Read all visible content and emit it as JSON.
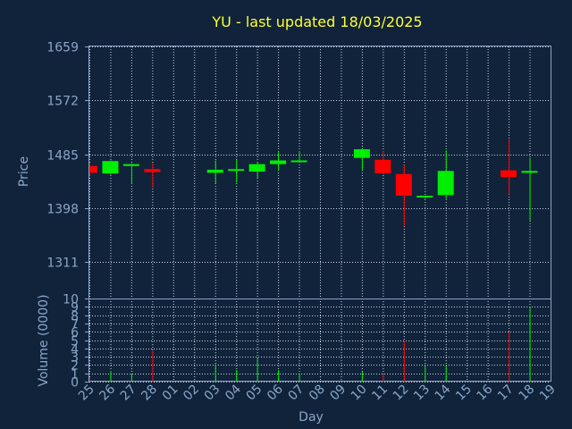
{
  "chart_data": {
    "type": "candlestick",
    "title": "YU - last updated 18/03/2025",
    "xlabel": "Day",
    "ylabel": "Price",
    "volume_ylabel": "Volume (0000)",
    "x_ticks": [
      "25",
      "26",
      "27",
      "28",
      "01",
      "02",
      "03",
      "04",
      "05",
      "06",
      "07",
      "08",
      "09",
      "10",
      "11",
      "12",
      "13",
      "14",
      "15",
      "16",
      "17",
      "18",
      "19"
    ],
    "price_ticks": [
      1311,
      1398,
      1485,
      1572,
      1659
    ],
    "price_ylim": [
      1252,
      1659
    ],
    "volume_ticks": [
      0,
      1,
      2,
      3,
      4,
      5,
      6,
      7,
      8,
      9,
      10
    ],
    "volume_ylim": [
      0,
      10
    ],
    "grid": true,
    "colors": {
      "up": "#00ee00",
      "down": "#ff0000",
      "background": "#10233a",
      "text": "#8aa6c8",
      "title": "#ffff33"
    },
    "candles": [
      {
        "day": "25",
        "open": 1466,
        "high": 1470,
        "low": 1450,
        "close": 1455,
        "volume": 0.5
      },
      {
        "day": "26",
        "open": 1454,
        "high": 1475,
        "low": 1452,
        "close": 1474,
        "volume": 1.3
      },
      {
        "day": "27",
        "open": 1466,
        "high": 1470,
        "low": 1437,
        "close": 1469,
        "volume": 0.9
      },
      {
        "day": "28",
        "open": 1461,
        "high": 1471,
        "low": 1431,
        "close": 1456,
        "volume": 3.7
      },
      {
        "day": "03",
        "open": 1455,
        "high": 1475,
        "low": 1438,
        "close": 1460,
        "volume": 2.1
      },
      {
        "day": "04",
        "open": 1459,
        "high": 1476,
        "low": 1439,
        "close": 1461,
        "volume": 1.4
      },
      {
        "day": "05",
        "open": 1457,
        "high": 1473,
        "low": 1447,
        "close": 1469,
        "volume": 2.8
      },
      {
        "day": "06",
        "open": 1469,
        "high": 1490,
        "low": 1459,
        "close": 1475,
        "volume": 1.4
      },
      {
        "day": "07",
        "open": 1473,
        "high": 1490,
        "low": 1472,
        "close": 1475,
        "volume": 1.0
      },
      {
        "day": "10",
        "open": 1479,
        "high": 1495,
        "low": 1459,
        "close": 1493,
        "volume": 1.2
      },
      {
        "day": "11",
        "open": 1476,
        "high": 1490,
        "low": 1452,
        "close": 1454,
        "volume": 0.9
      },
      {
        "day": "12",
        "open": 1453,
        "high": 1468,
        "low": 1370,
        "close": 1418,
        "volume": 4.8
      },
      {
        "day": "13",
        "open": 1416,
        "high": 1418,
        "low": 1413,
        "close": 1418,
        "volume": 2.0
      },
      {
        "day": "14",
        "open": 1419,
        "high": 1491,
        "low": 1413,
        "close": 1458,
        "volume": 1.9
      },
      {
        "day": "17",
        "open": 1459,
        "high": 1509,
        "low": 1420,
        "close": 1448,
        "volume": 6.0
      },
      {
        "day": "18",
        "open": 1455,
        "high": 1479,
        "low": 1378,
        "close": 1458,
        "volume": 9.0
      }
    ]
  }
}
